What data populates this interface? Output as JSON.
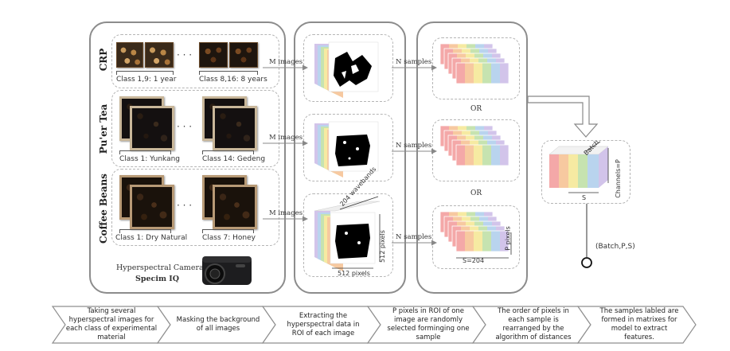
{
  "rows": [
    {
      "label": "CRP",
      "first_class": "Class 1,9: 1 year",
      "last_class": "Class 8,16: 8 years",
      "m_label": "M images"
    },
    {
      "label": "Pu'er Tea",
      "first_class": "Class 1: Yunkang",
      "last_class": "Class 14: Gedeng",
      "m_label": "M images"
    },
    {
      "label": "Coffee Beans",
      "first_class": "Class 1: Dry Natural",
      "last_class": "Class 7: Honey",
      "m_label": "M images"
    }
  ],
  "ellipsis": "· · ·",
  "camera": {
    "line1": "Hyperspectral Camera",
    "line2": "Specim IQ",
    "icon": "camera-icon"
  },
  "cube_dims": {
    "wavebands": "204 wavebands",
    "height": "512 pixels",
    "width": "512 pixels"
  },
  "n_samples_label": "N samples",
  "or_label": "OR",
  "sample_dims": {
    "width": "S=204",
    "height": "P pixels"
  },
  "batch_dims": {
    "batch": "Batch",
    "channels": "Channels=P",
    "width": "S"
  },
  "output_label": "(Batch,P,S)",
  "steps": [
    "Taking several hyperspectral images for each class of experimental material",
    "Masking the background of all images",
    "Extracting the hyperspectral data in ROI of each image",
    "P pixels in ROI of one image are randomly selected forminging one sample",
    "The order of pixels in each sample is rearranged by the algorithm of distances",
    "The samples labled are formed in matrixes for model to extract features."
  ],
  "colors": {
    "panel_border": "#8c8c8c",
    "dash": "#b5b5b5",
    "spectral": [
      "#f4a8a8",
      "#f7c9a0",
      "#f6eaa2",
      "#c6e3b0",
      "#b9d4ee",
      "#d2c4ea"
    ]
  }
}
